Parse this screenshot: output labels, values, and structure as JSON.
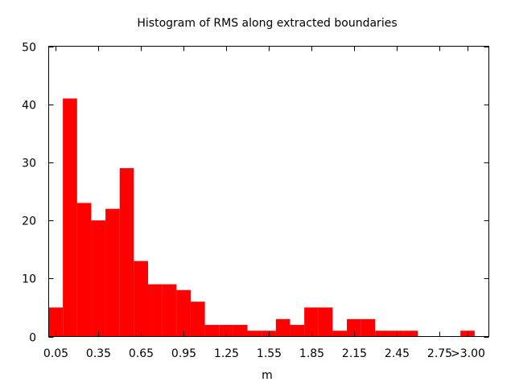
{
  "chart_data": {
    "type": "bar",
    "title": "Histogram of RMS along extracted boundaries",
    "xlabel": "m",
    "ylabel": "",
    "bin_width": 0.1,
    "bin_starts": [
      0.0,
      0.1,
      0.2,
      0.3,
      0.4,
      0.5,
      0.6,
      0.7,
      0.8,
      0.9,
      1.0,
      1.1,
      1.2,
      1.3,
      1.4,
      1.5,
      1.6,
      1.7,
      1.8,
      1.9,
      2.0,
      2.1,
      2.2,
      2.3,
      2.4,
      2.5,
      2.6,
      2.7,
      2.8,
      2.9
    ],
    "values": [
      5,
      41,
      23,
      20,
      22,
      29,
      13,
      9,
      9,
      8,
      6,
      2,
      2,
      2,
      1,
      1,
      3,
      2,
      5,
      5,
      1,
      3,
      3,
      1,
      1,
      1,
      0,
      0,
      0,
      1
    ],
    "xlim": [
      0,
      3.1
    ],
    "ylim": [
      0,
      50
    ],
    "xticks": [
      {
        "value": 0.05,
        "label": "0.05"
      },
      {
        "value": 0.35,
        "label": "0.35"
      },
      {
        "value": 0.65,
        "label": "0.65"
      },
      {
        "value": 0.95,
        "label": "0.95"
      },
      {
        "value": 1.25,
        "label": "1.25"
      },
      {
        "value": 1.55,
        "label": "1.55"
      },
      {
        "value": 1.85,
        "label": "1.85"
      },
      {
        "value": 2.15,
        "label": "2.15"
      },
      {
        "value": 2.45,
        "label": "2.45"
      },
      {
        "value": 2.75,
        "label": "2.75"
      },
      {
        "value": 2.95,
        "label": ">3.00"
      }
    ],
    "yticks": [
      {
        "value": 0,
        "label": "0"
      },
      {
        "value": 10,
        "label": "10"
      },
      {
        "value": 20,
        "label": "20"
      },
      {
        "value": 30,
        "label": "30"
      },
      {
        "value": 40,
        "label": "40"
      },
      {
        "value": 50,
        "label": "50"
      }
    ],
    "bar_color": "#ff0000",
    "grid": false,
    "legend": "none"
  }
}
